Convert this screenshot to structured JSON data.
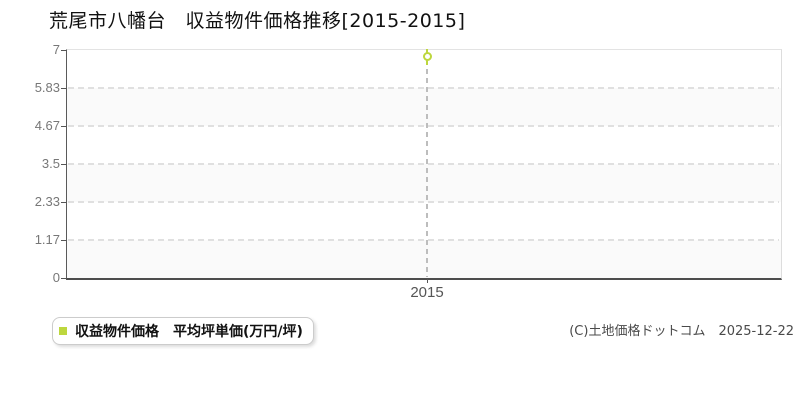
{
  "title": "荒尾市八幡台　収益物件価格推移[2015-2015]",
  "legend": {
    "label": "収益物件価格　平均坪単価(万円/坪)",
    "swatch_color": "#bdd73e"
  },
  "copyright": "(C)土地価格ドットコム　2025-12-22",
  "colors": {
    "accent": "#bdd73e",
    "axis": "#555555",
    "horizontal_grid_dash": "#e0e0e0",
    "x_gridline_dash": "#bdbdbd",
    "alt_band": "#fafafa",
    "plot_border": "#dddddd",
    "title_text": "#111111",
    "y_tick_text": "#777777",
    "x_tick_text": "#555555",
    "copyright_text": "#4a4a4a"
  },
  "chart_data": {
    "type": "line",
    "title": "荒尾市八幡台 収益物件価格推移[2015-2015]",
    "x": [
      "2015"
    ],
    "series": [
      {
        "name": "収益物件価格 平均坪単価(万円/坪)",
        "values": [
          6.8
        ],
        "color": "#bdd73e",
        "marker": "open-circle"
      }
    ],
    "xlabel": "",
    "ylabel": "",
    "ylim": [
      0,
      7
    ],
    "yticks": [
      0,
      1.17,
      2.33,
      3.5,
      4.67,
      5.83,
      7
    ],
    "ytick_labels": [
      "0",
      "1.17",
      "2.33",
      "3.5",
      "4.67",
      "5.83",
      "7"
    ],
    "xtick_labels": [
      "2015"
    ],
    "grid": "horizontal-dashed",
    "plot_background": "alternating-horizontal-bands",
    "legend_position": "bottom-left"
  }
}
